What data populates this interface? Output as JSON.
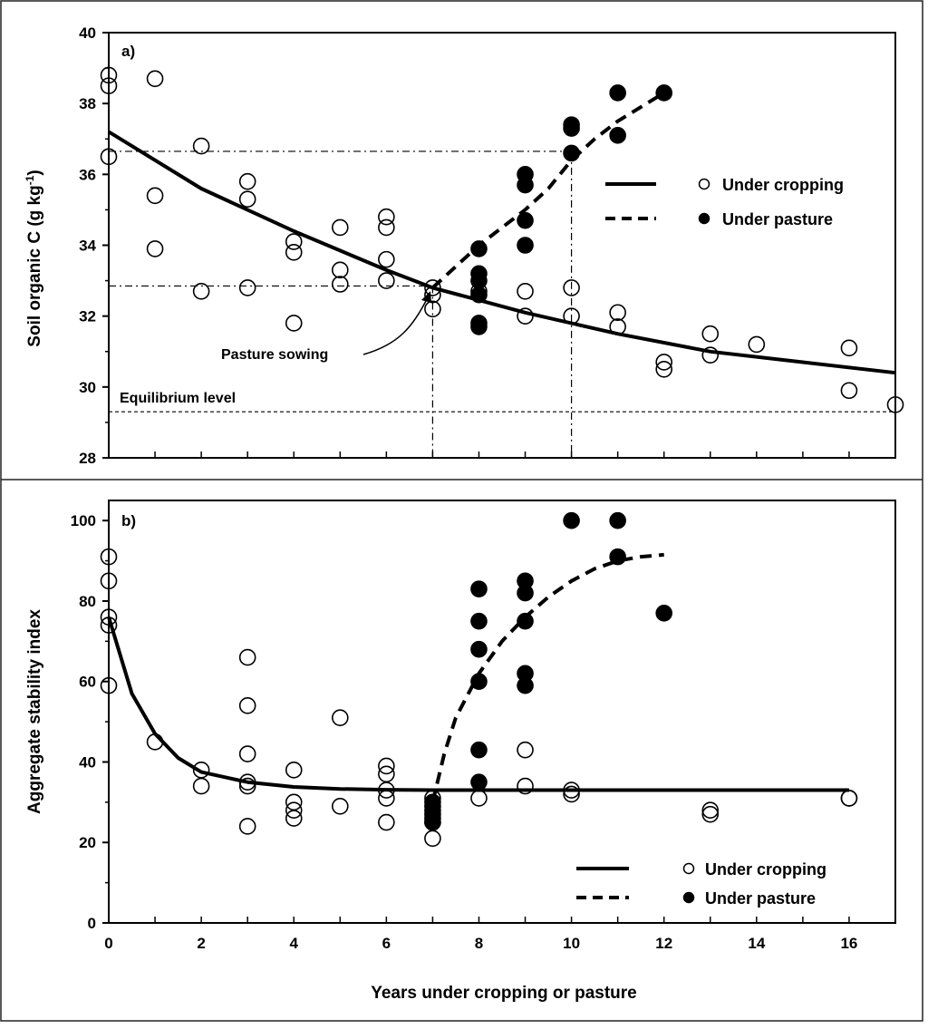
{
  "figure": {
    "xlabel": "Years under cropping or pasture"
  },
  "chart_data": [
    {
      "type": "scatter",
      "panel_label": "a)",
      "title": "",
      "xlabel": "Years under cropping or pasture",
      "ylabel": "Soil organic C (g kg⁻¹)",
      "xlim": [
        0,
        17
      ],
      "ylim": [
        28,
        40
      ],
      "yticks": [
        "28",
        "30",
        "32",
        "34",
        "36",
        "38",
        "40"
      ],
      "xticks": [],
      "legend_position": "right",
      "series": [
        {
          "name": "Under cropping",
          "marker": "open-circle",
          "line": "solid",
          "points": [
            [
              0,
              38.8
            ],
            [
              0,
              38.5
            ],
            [
              0,
              36.5
            ],
            [
              1,
              38.7
            ],
            [
              1,
              35.4
            ],
            [
              1,
              33.9
            ],
            [
              2,
              36.8
            ],
            [
              2,
              32.7
            ],
            [
              3,
              35.8
            ],
            [
              3,
              35.3
            ],
            [
              3,
              32.8
            ],
            [
              4,
              34.1
            ],
            [
              4,
              33.8
            ],
            [
              4,
              31.8
            ],
            [
              5,
              34.5
            ],
            [
              5,
              33.3
            ],
            [
              5,
              32.9
            ],
            [
              6,
              34.8
            ],
            [
              6,
              34.5
            ],
            [
              6,
              33.6
            ],
            [
              6,
              33.0
            ],
            [
              7,
              32.8
            ],
            [
              7,
              32.6
            ],
            [
              7,
              32.2
            ],
            [
              8,
              32.7
            ],
            [
              9,
              32.7
            ],
            [
              9,
              32.0
            ],
            [
              10,
              32.8
            ],
            [
              10,
              32.0
            ],
            [
              11,
              32.1
            ],
            [
              11,
              31.7
            ],
            [
              12,
              30.7
            ],
            [
              12,
              30.5
            ],
            [
              13,
              31.5
            ],
            [
              13,
              30.9
            ],
            [
              14,
              31.2
            ],
            [
              16,
              31.1
            ],
            [
              16,
              29.9
            ],
            [
              17,
              29.5
            ]
          ],
          "curve": [
            [
              0,
              37.2
            ],
            [
              2,
              35.6
            ],
            [
              4,
              34.4
            ],
            [
              6,
              33.3
            ],
            [
              7,
              32.8
            ],
            [
              9,
              32.1
            ],
            [
              11,
              31.5
            ],
            [
              13,
              31.0
            ],
            [
              15,
              30.7
            ],
            [
              17,
              30.4
            ]
          ]
        },
        {
          "name": "Under pasture",
          "marker": "filled-circle",
          "line": "dashed",
          "points": [
            [
              8,
              33.9
            ],
            [
              8,
              33.2
            ],
            [
              8,
              33.0
            ],
            [
              8,
              32.6
            ],
            [
              8,
              31.8
            ],
            [
              8,
              31.7
            ],
            [
              9,
              36.0
            ],
            [
              9,
              35.7
            ],
            [
              9,
              34.7
            ],
            [
              9,
              34.0
            ],
            [
              10,
              37.4
            ],
            [
              10,
              37.3
            ],
            [
              10,
              36.6
            ],
            [
              11,
              38.3
            ],
            [
              11,
              37.1
            ],
            [
              12,
              38.3
            ]
          ],
          "curve": [
            [
              7,
              32.8
            ],
            [
              7.5,
              33.4
            ],
            [
              8,
              34.0
            ],
            [
              8.5,
              34.5
            ],
            [
              9,
              35.0
            ],
            [
              9.5,
              35.6
            ],
            [
              10,
              36.4
            ],
            [
              10.5,
              37.0
            ],
            [
              11,
              37.5
            ],
            [
              11.5,
              37.9
            ],
            [
              12,
              38.3
            ]
          ]
        }
      ],
      "reference_lines": {
        "equilibrium_level": 29.3,
        "pasture_sowing_x": 7,
        "pasture_sowing_y": 32.85,
        "x_at_10_years": 10,
        "y_at_10_years": 36.65
      },
      "annotations": [
        "Pasture sowing",
        "Equilibrium level"
      ]
    },
    {
      "type": "scatter",
      "panel_label": "b)",
      "title": "",
      "xlabel": "Years under cropping or pasture",
      "ylabel": "Aggregate stability index",
      "xlim": [
        0,
        17
      ],
      "ylim": [
        0,
        105
      ],
      "xticks": [
        "0",
        "2",
        "4",
        "6",
        "8",
        "10",
        "12",
        "14",
        "16"
      ],
      "yticks": [
        "0",
        "20",
        "40",
        "60",
        "80",
        "100"
      ],
      "legend_position": "bottom-right",
      "series": [
        {
          "name": "Under cropping",
          "marker": "open-circle",
          "line": "solid",
          "points": [
            [
              0,
              91
            ],
            [
              0,
              85
            ],
            [
              0,
              76
            ],
            [
              0,
              74
            ],
            [
              0,
              59
            ],
            [
              1,
              45
            ],
            [
              2,
              38
            ],
            [
              2,
              34
            ],
            [
              3,
              66
            ],
            [
              3,
              54
            ],
            [
              3,
              42
            ],
            [
              3,
              35
            ],
            [
              3,
              34
            ],
            [
              3,
              24
            ],
            [
              4,
              38
            ],
            [
              4,
              30
            ],
            [
              4,
              28
            ],
            [
              4,
              26
            ],
            [
              5,
              51
            ],
            [
              5,
              29
            ],
            [
              6,
              39
            ],
            [
              6,
              37
            ],
            [
              6,
              33
            ],
            [
              6,
              31
            ],
            [
              6,
              25
            ],
            [
              7,
              31
            ],
            [
              7,
              29
            ],
            [
              7,
              27
            ],
            [
              7,
              25
            ],
            [
              7,
              21
            ],
            [
              8,
              31
            ],
            [
              9,
              43
            ],
            [
              9,
              34
            ],
            [
              10,
              33
            ],
            [
              10,
              32
            ],
            [
              13,
              28
            ],
            [
              13,
              27
            ],
            [
              16,
              31
            ],
            [
              16,
              31
            ]
          ],
          "curve": [
            [
              0,
              76
            ],
            [
              0.5,
              57
            ],
            [
              1,
              47
            ],
            [
              1.5,
              41
            ],
            [
              2,
              37.5
            ],
            [
              3,
              35
            ],
            [
              4,
              33.8
            ],
            [
              5,
              33.3
            ],
            [
              6,
              33.1
            ],
            [
              7,
              33
            ],
            [
              9,
              33
            ],
            [
              11,
              33
            ],
            [
              13,
              33
            ],
            [
              16,
              33
            ]
          ]
        },
        {
          "name": "Under pasture",
          "marker": "filled-circle",
          "line": "dashed",
          "points": [
            [
              7,
              30
            ],
            [
              7,
              28
            ],
            [
              7,
              26
            ],
            [
              7,
              25
            ],
            [
              8,
              83
            ],
            [
              8,
              75
            ],
            [
              8,
              68
            ],
            [
              8,
              60
            ],
            [
              8,
              43
            ],
            [
              8,
              35
            ],
            [
              9,
              85
            ],
            [
              9,
              82
            ],
            [
              9,
              75
            ],
            [
              9,
              62
            ],
            [
              9,
              59
            ],
            [
              10,
              100
            ],
            [
              11,
              100
            ],
            [
              11,
              91
            ],
            [
              12,
              77
            ]
          ],
          "curve": [
            [
              7,
              30
            ],
            [
              7.25,
              42
            ],
            [
              7.5,
              51
            ],
            [
              8,
              62
            ],
            [
              8.5,
              70
            ],
            [
              9,
              76
            ],
            [
              9.5,
              81
            ],
            [
              10,
              85
            ],
            [
              10.5,
              88
            ],
            [
              11,
              90
            ],
            [
              11.5,
              91
            ],
            [
              12,
              91.5
            ]
          ]
        }
      ]
    }
  ]
}
